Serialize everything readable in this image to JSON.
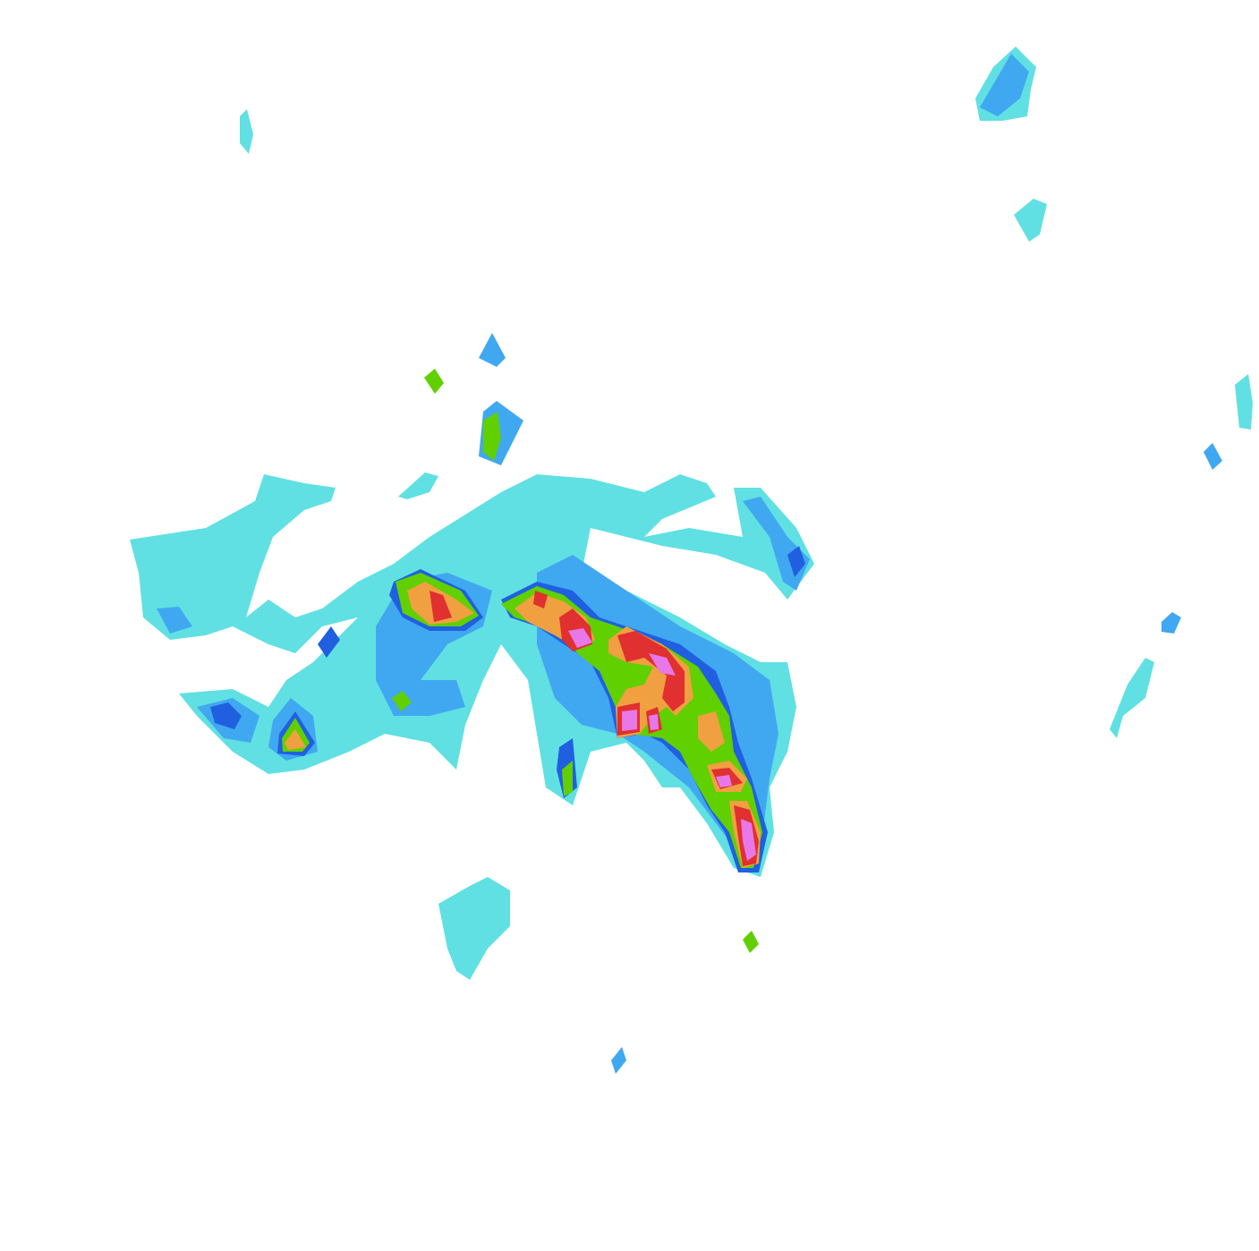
{
  "map": {
    "kind": "precipitation-radar-contours",
    "background": "#ffffff",
    "levels": [
      {
        "name": "level-1",
        "color": "#60e0e2"
      },
      {
        "name": "level-2",
        "color": "#40a8f0"
      },
      {
        "name": "level-3",
        "color": "#2060e0"
      },
      {
        "name": "level-4",
        "color": "#60d000"
      },
      {
        "name": "level-5",
        "color": "#40a000"
      },
      {
        "name": "level-6",
        "color": "#f0a040"
      },
      {
        "name": "level-7",
        "color": "#e03030"
      },
      {
        "name": "level-8",
        "color": "#b02050"
      },
      {
        "name": "level-9",
        "color": "#e878e8"
      },
      {
        "name": "level-10",
        "color": "#a040c0"
      }
    ]
  }
}
